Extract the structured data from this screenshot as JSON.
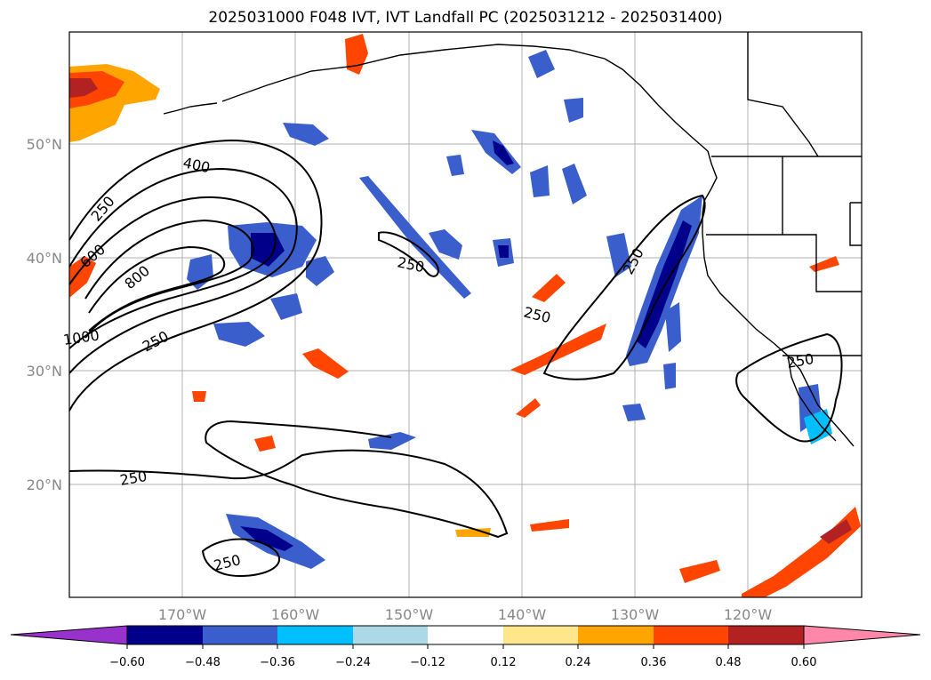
{
  "title": "2025031000 F048 IVT, IVT Landfall PC (2025031212 - 2025031400)",
  "map": {
    "lon_ticks": [
      "170°W",
      "160°W",
      "150°W",
      "140°W",
      "130°W",
      "120°W"
    ],
    "lat_ticks": [
      "50°N",
      "40°N",
      "30°N",
      "20°N"
    ],
    "contour_labels": [
      {
        "name": "contour-label-400-north",
        "text": "400"
      },
      {
        "name": "contour-label-250-west",
        "text": "250"
      },
      {
        "name": "contour-label-600-west",
        "text": "600"
      },
      {
        "name": "contour-label-800",
        "text": "800"
      },
      {
        "name": "contour-label-1000",
        "text": "1000"
      },
      {
        "name": "contour-label-250-south",
        "text": "250"
      },
      {
        "name": "contour-label-250-central",
        "text": "250"
      },
      {
        "name": "contour-label-250-east",
        "text": "250"
      },
      {
        "name": "contour-label-250-coast",
        "text": "250"
      },
      {
        "name": "contour-label-250-baja",
        "text": "250"
      },
      {
        "name": "contour-label-250-subtropic",
        "text": "250"
      },
      {
        "name": "contour-label-250-south-low",
        "text": "250"
      }
    ]
  },
  "colorbar": {
    "ticks": [
      "−0.60",
      "−0.48",
      "−0.36",
      "−0.24",
      "−0.12",
      "0.12",
      "0.24",
      "0.36",
      "0.48",
      "0.60"
    ],
    "colors": [
      "#9932cc",
      "#00008b",
      "#3a5fcd",
      "#00bfff",
      "#add8e6",
      "#ffffff",
      "#ffe68a",
      "#ffa500",
      "#ff4500",
      "#b22222",
      "#ff88aa"
    ]
  }
}
